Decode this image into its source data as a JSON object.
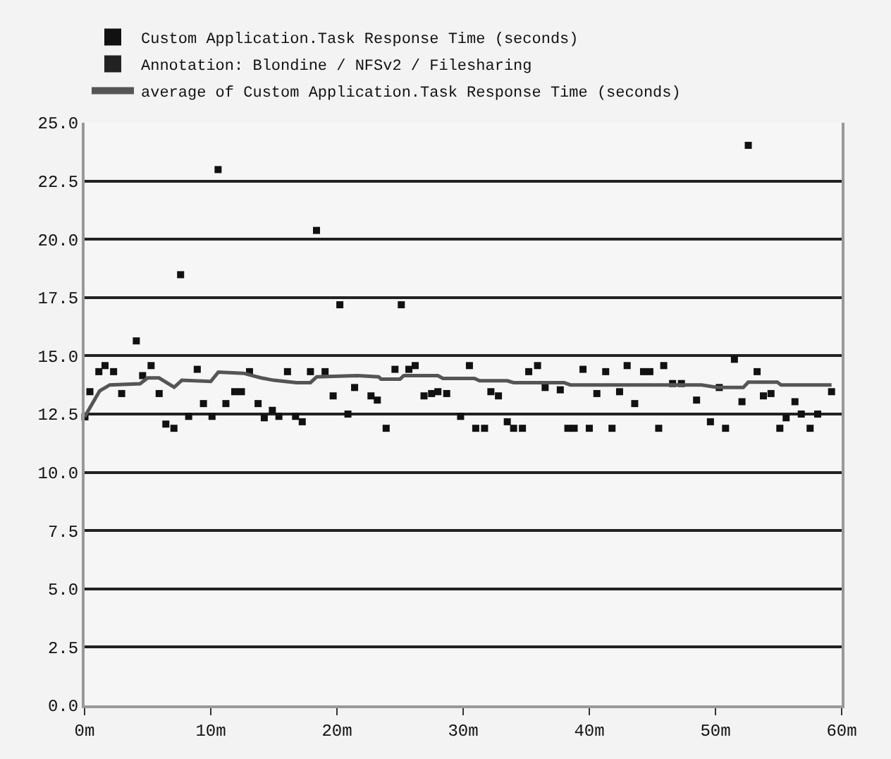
{
  "chart_data": {
    "type": "scatter",
    "xlim": [
      0,
      60
    ],
    "ylim": [
      0,
      25
    ],
    "xticks": [
      {
        "value": 0,
        "label": "0m"
      },
      {
        "value": 10,
        "label": "10m"
      },
      {
        "value": 20,
        "label": "20m"
      },
      {
        "value": 30,
        "label": "30m"
      },
      {
        "value": 40,
        "label": "40m"
      },
      {
        "value": 50,
        "label": "50m"
      },
      {
        "value": 60,
        "label": "60m"
      }
    ],
    "yticks": [
      {
        "value": 0,
        "label": "0.0"
      },
      {
        "value": 2.5,
        "label": "2.5"
      },
      {
        "value": 5,
        "label": "5.0"
      },
      {
        "value": 7.5,
        "label": "7.5"
      },
      {
        "value": 10,
        "label": "10.0"
      },
      {
        "value": 12.5,
        "label": "12.5"
      },
      {
        "value": 15,
        "label": "15.0"
      },
      {
        "value": 17.5,
        "label": "17.5"
      },
      {
        "value": 20,
        "label": "20.0"
      },
      {
        "value": 22.5,
        "label": "22.5"
      },
      {
        "value": 25,
        "label": "25.0"
      }
    ],
    "grid": "y",
    "legend": "top left",
    "marker": "square",
    "series": [
      {
        "name": "Custom Application.Task Response Time (seconds)",
        "color": "#111111",
        "x": [
          0.03,
          0.42,
          1.13,
          1.62,
          2.3,
          2.94,
          4.1,
          4.6,
          5.27,
          5.91,
          6.44,
          7.08,
          7.61,
          8.25,
          8.93,
          9.42,
          10.1,
          10.58,
          11.2,
          11.9,
          12.43,
          13.07,
          13.75,
          14.24,
          14.88,
          15.4,
          16.08,
          16.72,
          17.25,
          17.9,
          18.38,
          19.06,
          19.7,
          20.23,
          20.87,
          21.4,
          22.7,
          23.2,
          23.9,
          24.6,
          25.1,
          25.7,
          26.2,
          26.9,
          27.5,
          28.0,
          28.7,
          29.8,
          30.5,
          31.0,
          31.7,
          32.2,
          32.8,
          33.5,
          34.0,
          34.7,
          35.2,
          35.9,
          36.5,
          37.7,
          38.3,
          38.8,
          39.5,
          40.0,
          40.6,
          41.3,
          41.8,
          42.4,
          43.0,
          43.6,
          44.3,
          44.8,
          45.5,
          45.9,
          46.6,
          47.3,
          48.5,
          49.6,
          50.3,
          50.8,
          51.5,
          52.1,
          52.6,
          53.3,
          53.8,
          54.4,
          55.1,
          55.6,
          56.3,
          56.8,
          57.5,
          58.1,
          59.2
        ],
        "values": [
          12.38,
          13.46,
          14.32,
          14.58,
          14.32,
          13.38,
          15.64,
          14.15,
          14.58,
          13.38,
          12.07,
          11.89,
          18.48,
          12.4,
          14.42,
          12.95,
          12.4,
          22.99,
          12.95,
          13.46,
          13.46,
          14.32,
          12.95,
          12.34,
          12.66,
          12.4,
          14.32,
          12.4,
          12.17,
          14.32,
          20.38,
          14.32,
          13.28,
          17.19,
          12.5,
          13.64,
          13.28,
          13.1,
          11.89,
          14.42,
          17.19,
          14.42,
          14.58,
          13.28,
          13.38,
          13.46,
          13.38,
          12.4,
          14.58,
          11.89,
          11.89,
          13.46,
          13.28,
          12.17,
          11.89,
          11.89,
          14.32,
          14.58,
          13.64,
          13.54,
          11.89,
          11.89,
          14.42,
          11.89,
          13.38,
          14.32,
          11.89,
          13.46,
          14.58,
          12.95,
          14.32,
          14.32,
          11.89,
          14.58,
          13.81,
          13.81,
          13.1,
          12.17,
          13.64,
          11.89,
          14.85,
          13.03,
          24.03,
          14.32,
          13.28,
          13.38,
          11.89,
          12.34,
          13.03,
          12.5,
          11.89,
          12.5,
          13.46
        ]
      },
      {
        "name": "Annotation: Blondine / NFSv2 / Filesharing",
        "color": "#222222"
      },
      {
        "name": "average of Custom Application.Task Response Time (seconds)",
        "type": "line",
        "color": "#555555",
        "marker": "none",
        "x": [
          0,
          1.2,
          2,
          4.4,
          5,
          5.9,
          7.1,
          7.7,
          10,
          10.6,
          12.6,
          14,
          15,
          16.8,
          17.9,
          18.4,
          21.6,
          23.3,
          23.5,
          25,
          25.3,
          28,
          28.4,
          30.9,
          31.3,
          33.5,
          34,
          38,
          38.5,
          48.9,
          50.2,
          52.2,
          52.6,
          54.9,
          55.2,
          59.2
        ],
        "values": [
          12.38,
          13.5,
          13.75,
          13.8,
          14.05,
          14.05,
          13.65,
          13.95,
          13.9,
          14.3,
          14.25,
          14.05,
          13.95,
          13.85,
          13.85,
          14.1,
          14.15,
          14.1,
          14.0,
          14.0,
          14.15,
          14.15,
          14.03,
          14.03,
          13.93,
          13.93,
          13.85,
          13.85,
          13.75,
          13.75,
          13.64,
          13.64,
          13.87,
          13.87,
          13.75,
          13.75
        ]
      }
    ]
  }
}
